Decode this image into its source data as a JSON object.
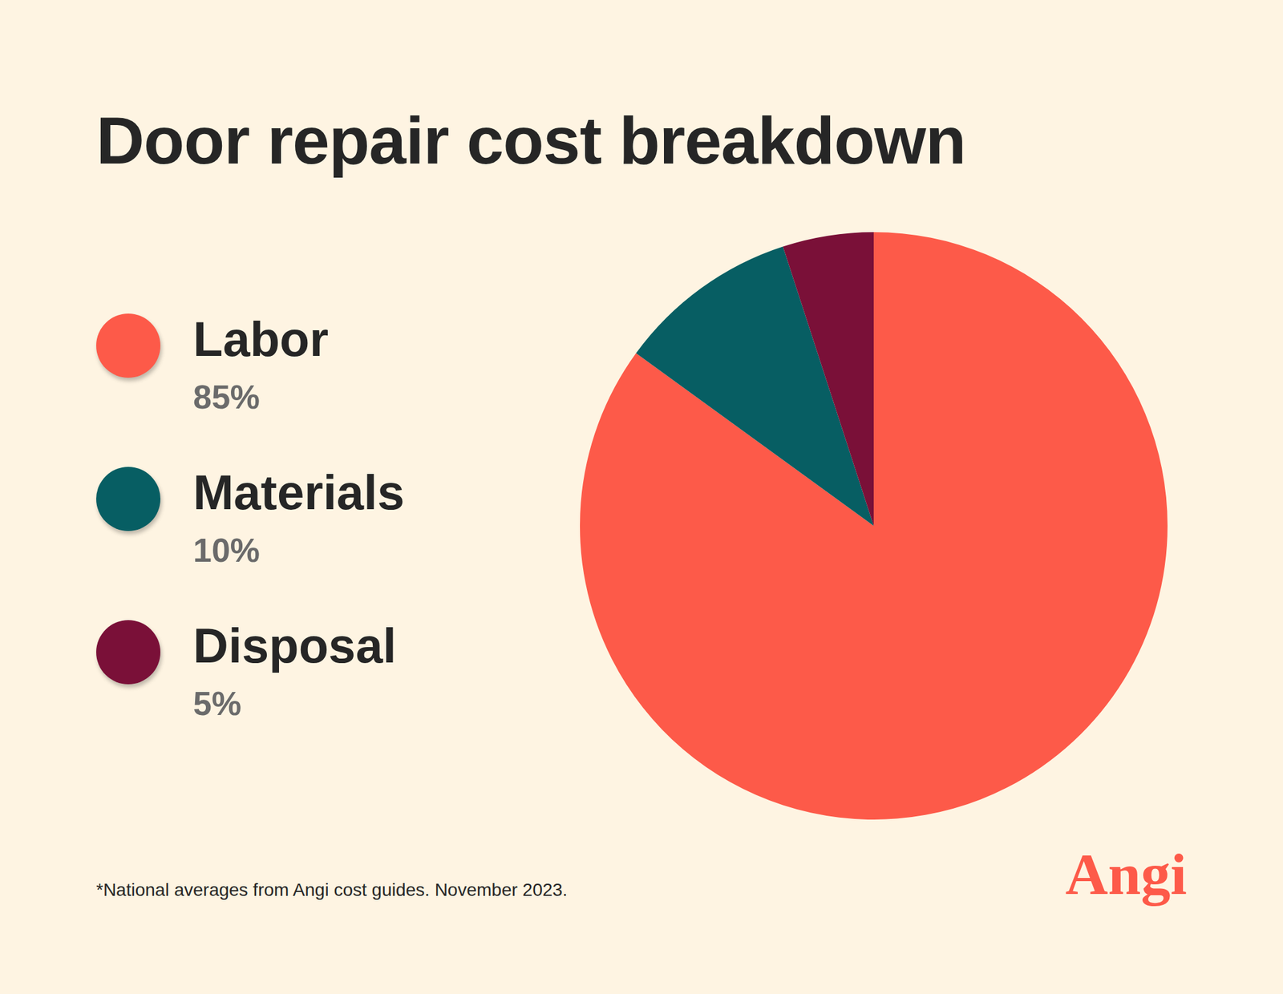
{
  "chart_data": {
    "type": "pie",
    "title": "Door repair cost breakdown",
    "categories": [
      "Labor",
      "Materials",
      "Disposal"
    ],
    "values": [
      85,
      10,
      5
    ],
    "value_labels": [
      "85%",
      "10%",
      "5%"
    ],
    "colors": [
      "#fd5a49",
      "#075e63",
      "#7a1038"
    ],
    "legend": "left",
    "footnote": "*National averages from Angi cost guides. November 2023.",
    "logo": "Angi"
  }
}
